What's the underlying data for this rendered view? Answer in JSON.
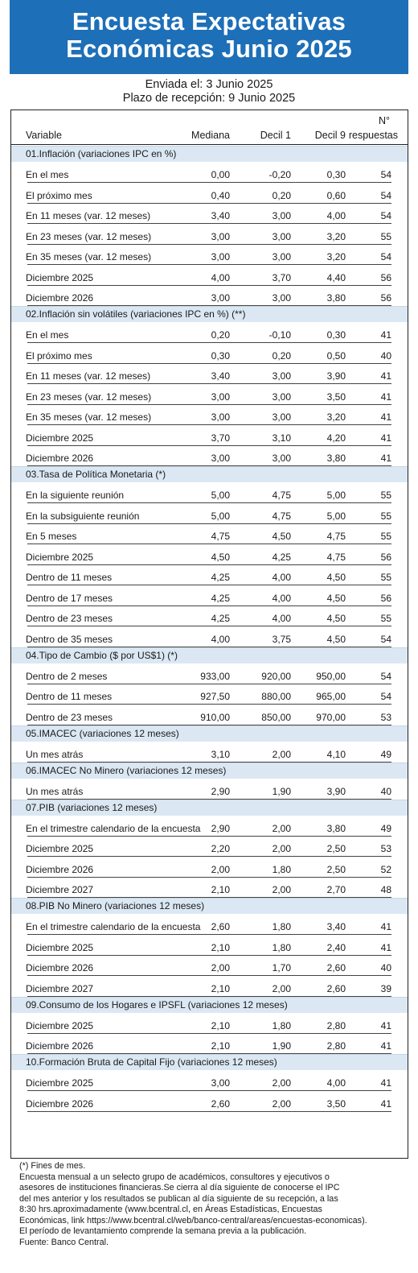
{
  "title_line1": "Encuesta Expectativas",
  "title_line2": "Económicas Junio 2025",
  "sent": "Enviada el: 3 Junio 2025",
  "deadline": "Plazo de recepción: 9 Junio 2025",
  "headers": {
    "variable": "Variable",
    "mediana": "Mediana",
    "decil1": "Decil 1",
    "decil9": "Decil 9",
    "n_line1": "N°",
    "n_line2": "respuestas"
  },
  "sections": [
    {
      "title": "01.Inflación (variaciones IPC en %)",
      "rows": [
        [
          "En el mes",
          "0,00",
          "-0,20",
          "0,30",
          "54"
        ],
        [
          "El próximo mes",
          "0,40",
          "0,20",
          "0,60",
          "54"
        ],
        [
          "En 11 meses (var. 12 meses)",
          "3,40",
          "3,00",
          "4,00",
          "54"
        ],
        [
          "En 23 meses (var. 12 meses)",
          "3,00",
          "3,00",
          "3,20",
          "55"
        ],
        [
          "En 35 meses (var. 12 meses)",
          "3,00",
          "3,00",
          "3,20",
          "54"
        ],
        [
          "Diciembre 2025",
          "4,00",
          "3,70",
          "4,40",
          "56"
        ],
        [
          "Diciembre 2026",
          "3,00",
          "3,00",
          "3,80",
          "56"
        ]
      ]
    },
    {
      "title": "02.Inflación sin volátiles (variaciones IPC en %) (**)",
      "rows": [
        [
          "En el mes",
          "0,20",
          "-0,10",
          "0,30",
          "41"
        ],
        [
          "El próximo mes",
          "0,30",
          "0,20",
          "0,50",
          "40"
        ],
        [
          "En 11 meses (var. 12 meses)",
          "3,40",
          "3,00",
          "3,90",
          "41"
        ],
        [
          "En 23 meses (var. 12 meses)",
          "3,00",
          "3,00",
          "3,50",
          "41"
        ],
        [
          "En 35 meses (var. 12 meses)",
          "3,00",
          "3,00",
          "3,20",
          "41"
        ],
        [
          "Diciembre 2025",
          "3,70",
          "3,10",
          "4,20",
          "41"
        ],
        [
          "Diciembre 2026",
          "3,00",
          "3,00",
          "3,80",
          "41"
        ]
      ]
    },
    {
      "title": "03.Tasa de Política Monetaria  (*)",
      "rows": [
        [
          "En la siguiente reunión",
          "5,00",
          "4,75",
          "5,00",
          "55"
        ],
        [
          "En la subsiguiente reunión",
          "5,00",
          "4,75",
          "5,00",
          "55"
        ],
        [
          "En 5 meses",
          "4,75",
          "4,50",
          "4,75",
          "55"
        ],
        [
          "Diciembre 2025",
          "4,50",
          "4,25",
          "4,75",
          "56"
        ],
        [
          "Dentro de 11 meses",
          "4,25",
          "4,00",
          "4,50",
          "55"
        ],
        [
          "Dentro de 17 meses",
          "4,25",
          "4,00",
          "4,50",
          "56"
        ],
        [
          "Dentro de 23 meses",
          "4,25",
          "4,00",
          "4,50",
          "55"
        ],
        [
          "Dentro de 35 meses",
          "4,00",
          "3,75",
          "4,50",
          "54"
        ]
      ]
    },
    {
      "title": "04.Tipo de Cambio  ($ por US$1) (*)",
      "rows": [
        [
          "Dentro de 2 meses",
          "933,00",
          "920,00",
          "950,00",
          "54"
        ],
        [
          "Dentro de 11 meses",
          "927,50",
          "880,00",
          "965,00",
          "54"
        ],
        [
          "Dentro de 23 meses",
          "910,00",
          "850,00",
          "970,00",
          "53"
        ]
      ]
    },
    {
      "title": "05.IMACEC  (variaciones 12 meses)",
      "rows": [
        [
          "Un mes atrás",
          "3,10",
          "2,00",
          "4,10",
          "49"
        ]
      ]
    },
    {
      "title": "06.IMACEC No Minero (variaciones 12 meses)",
      "rows": [
        [
          "Un mes atrás",
          "2,90",
          "1,90",
          "3,90",
          "40"
        ]
      ]
    },
    {
      "title": "07.PIB  (variaciones 12 meses)",
      "rows": [
        [
          "En el trimestre calendario de la encuesta",
          "2,90",
          "2,00",
          "3,80",
          "49"
        ],
        [
          "Diciembre 2025",
          "2,20",
          "2,00",
          "2,50",
          "53"
        ],
        [
          "Diciembre 2026",
          "2,00",
          "1,80",
          "2,50",
          "52"
        ],
        [
          "Diciembre 2027",
          "2,10",
          "2,00",
          "2,70",
          "48"
        ]
      ]
    },
    {
      "title": "08.PIB No Minero (variaciones 12 meses)",
      "rows": [
        [
          "En el trimestre calendario de la encuesta",
          "2,60",
          "1,80",
          "3,40",
          "41"
        ],
        [
          "Diciembre 2025",
          "2,10",
          "1,80",
          "2,40",
          "41"
        ],
        [
          "Diciembre 2026",
          "2,00",
          "1,70",
          "2,60",
          "40"
        ],
        [
          "Diciembre 2027",
          "2,10",
          "2,00",
          "2,60",
          "39"
        ]
      ]
    },
    {
      "title": "09.Consumo de los Hogares e IPSFL  (variaciones 12 meses)",
      "rows": [
        [
          "Diciembre 2025",
          "2,10",
          "1,80",
          "2,80",
          "41"
        ],
        [
          "Diciembre 2026",
          "2,10",
          "1,90",
          "2,80",
          "41"
        ]
      ]
    },
    {
      "title": "10.Formación Bruta de Capital Fijo  (variaciones 12 meses)",
      "rows": [
        [
          "Diciembre 2025",
          "3,00",
          "2,00",
          "4,00",
          "41"
        ],
        [
          "Diciembre 2026",
          "2,60",
          "2,00",
          "3,50",
          "41"
        ]
      ]
    }
  ],
  "footnotes": [
    "(*) Fines de mes.",
    "Encuesta mensual a un selecto grupo de académicos, consultores y ejecutivos o",
    "asesores de instituciones financieras.Se cierra al día siguiente de conocerse el IPC",
    "del mes anterior y los resultados se publican al día siguiente de su recepción, a las",
    "8:30 hrs.aproximadamente (www.bcentral.cl, en Áreas Estadísticas, Encuestas",
    "Económicas, link https://www.bcentral.cl/web/banco-central/areas/encuestas-economicas).",
    "El período de levantamiento comprende la semana previa a la publicación.",
    "Fuente: Banco Central."
  ]
}
